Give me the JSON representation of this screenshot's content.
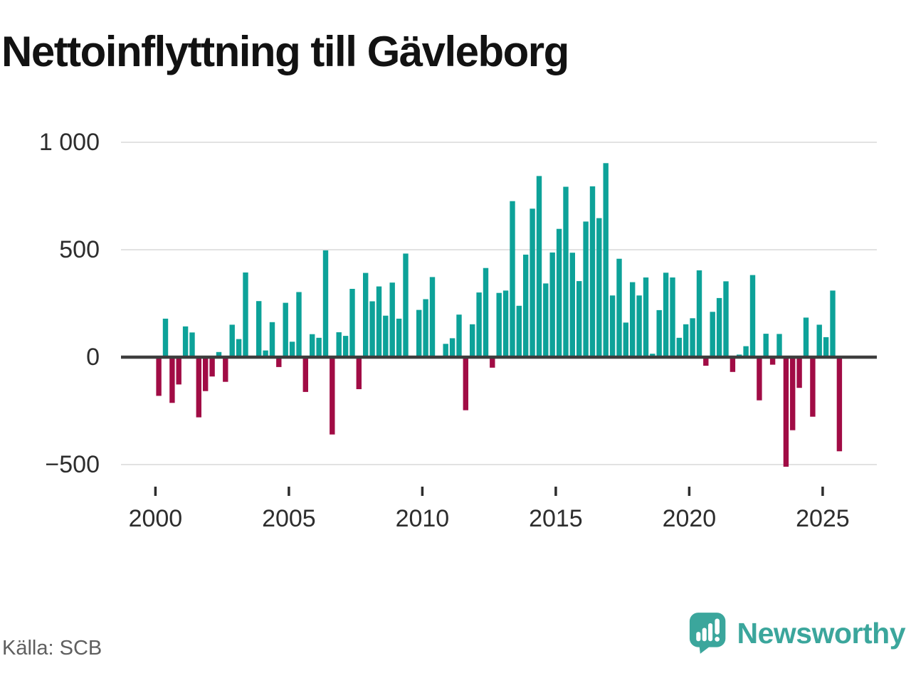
{
  "colors": {
    "positive": "#0da299",
    "negative": "#a10c45",
    "grid": "#e2e2e2",
    "zero_line": "#3d3d3d",
    "axis_text": "#2d2d2d",
    "title_text": "#121212",
    "source_text": "#5f5f5f",
    "logo_teal": "#3ba69c"
  },
  "footer": {
    "source": "Källa: SCB",
    "brand": "Newsworthy"
  },
  "chart_data": {
    "type": "bar",
    "title": "Nettoinflyttning till Gävleborg",
    "frequency": "quarterly",
    "start_period": "2000-Q1",
    "end_period": "2025-Q3",
    "ylim": [
      -500,
      1000
    ],
    "grid": "horizontal",
    "yticks": [
      {
        "v": 1000,
        "label": "1 000"
      },
      {
        "v": 500,
        "label": "500"
      },
      {
        "v": 0,
        "label": "0"
      },
      {
        "v": -500,
        "label": "−500"
      }
    ],
    "xticks": [
      {
        "year": 2000,
        "label": "2000"
      },
      {
        "year": 2005,
        "label": "2005"
      },
      {
        "year": 2010,
        "label": "2010"
      },
      {
        "year": 2015,
        "label": "2015"
      },
      {
        "year": 2020,
        "label": "2020"
      },
      {
        "year": 2025,
        "label": "2025"
      }
    ],
    "values": [
      -180,
      179,
      -213,
      -127,
      143,
      115,
      -280,
      -158,
      -90,
      24,
      -115,
      151,
      84,
      394,
      2,
      261,
      31,
      163,
      -46,
      253,
      72,
      303,
      -162,
      107,
      90,
      497,
      -360,
      116,
      99,
      318,
      -149,
      392,
      260,
      329,
      193,
      347,
      179,
      482,
      2,
      220,
      270,
      373,
      2,
      62,
      88,
      198,
      -247,
      153,
      301,
      415,
      -49,
      299,
      310,
      726,
      239,
      477,
      691,
      843,
      343,
      487,
      597,
      793,
      486,
      354,
      631,
      795,
      647,
      903,
      287,
      458,
      161,
      349,
      287,
      371,
      16,
      219,
      393,
      371,
      90,
      153,
      181,
      404,
      -40,
      211,
      275,
      353,
      -69,
      12,
      51,
      382,
      -201,
      109,
      -35,
      108,
      -510,
      -340,
      -143,
      184,
      -277,
      151,
      93,
      310,
      -438
    ]
  }
}
